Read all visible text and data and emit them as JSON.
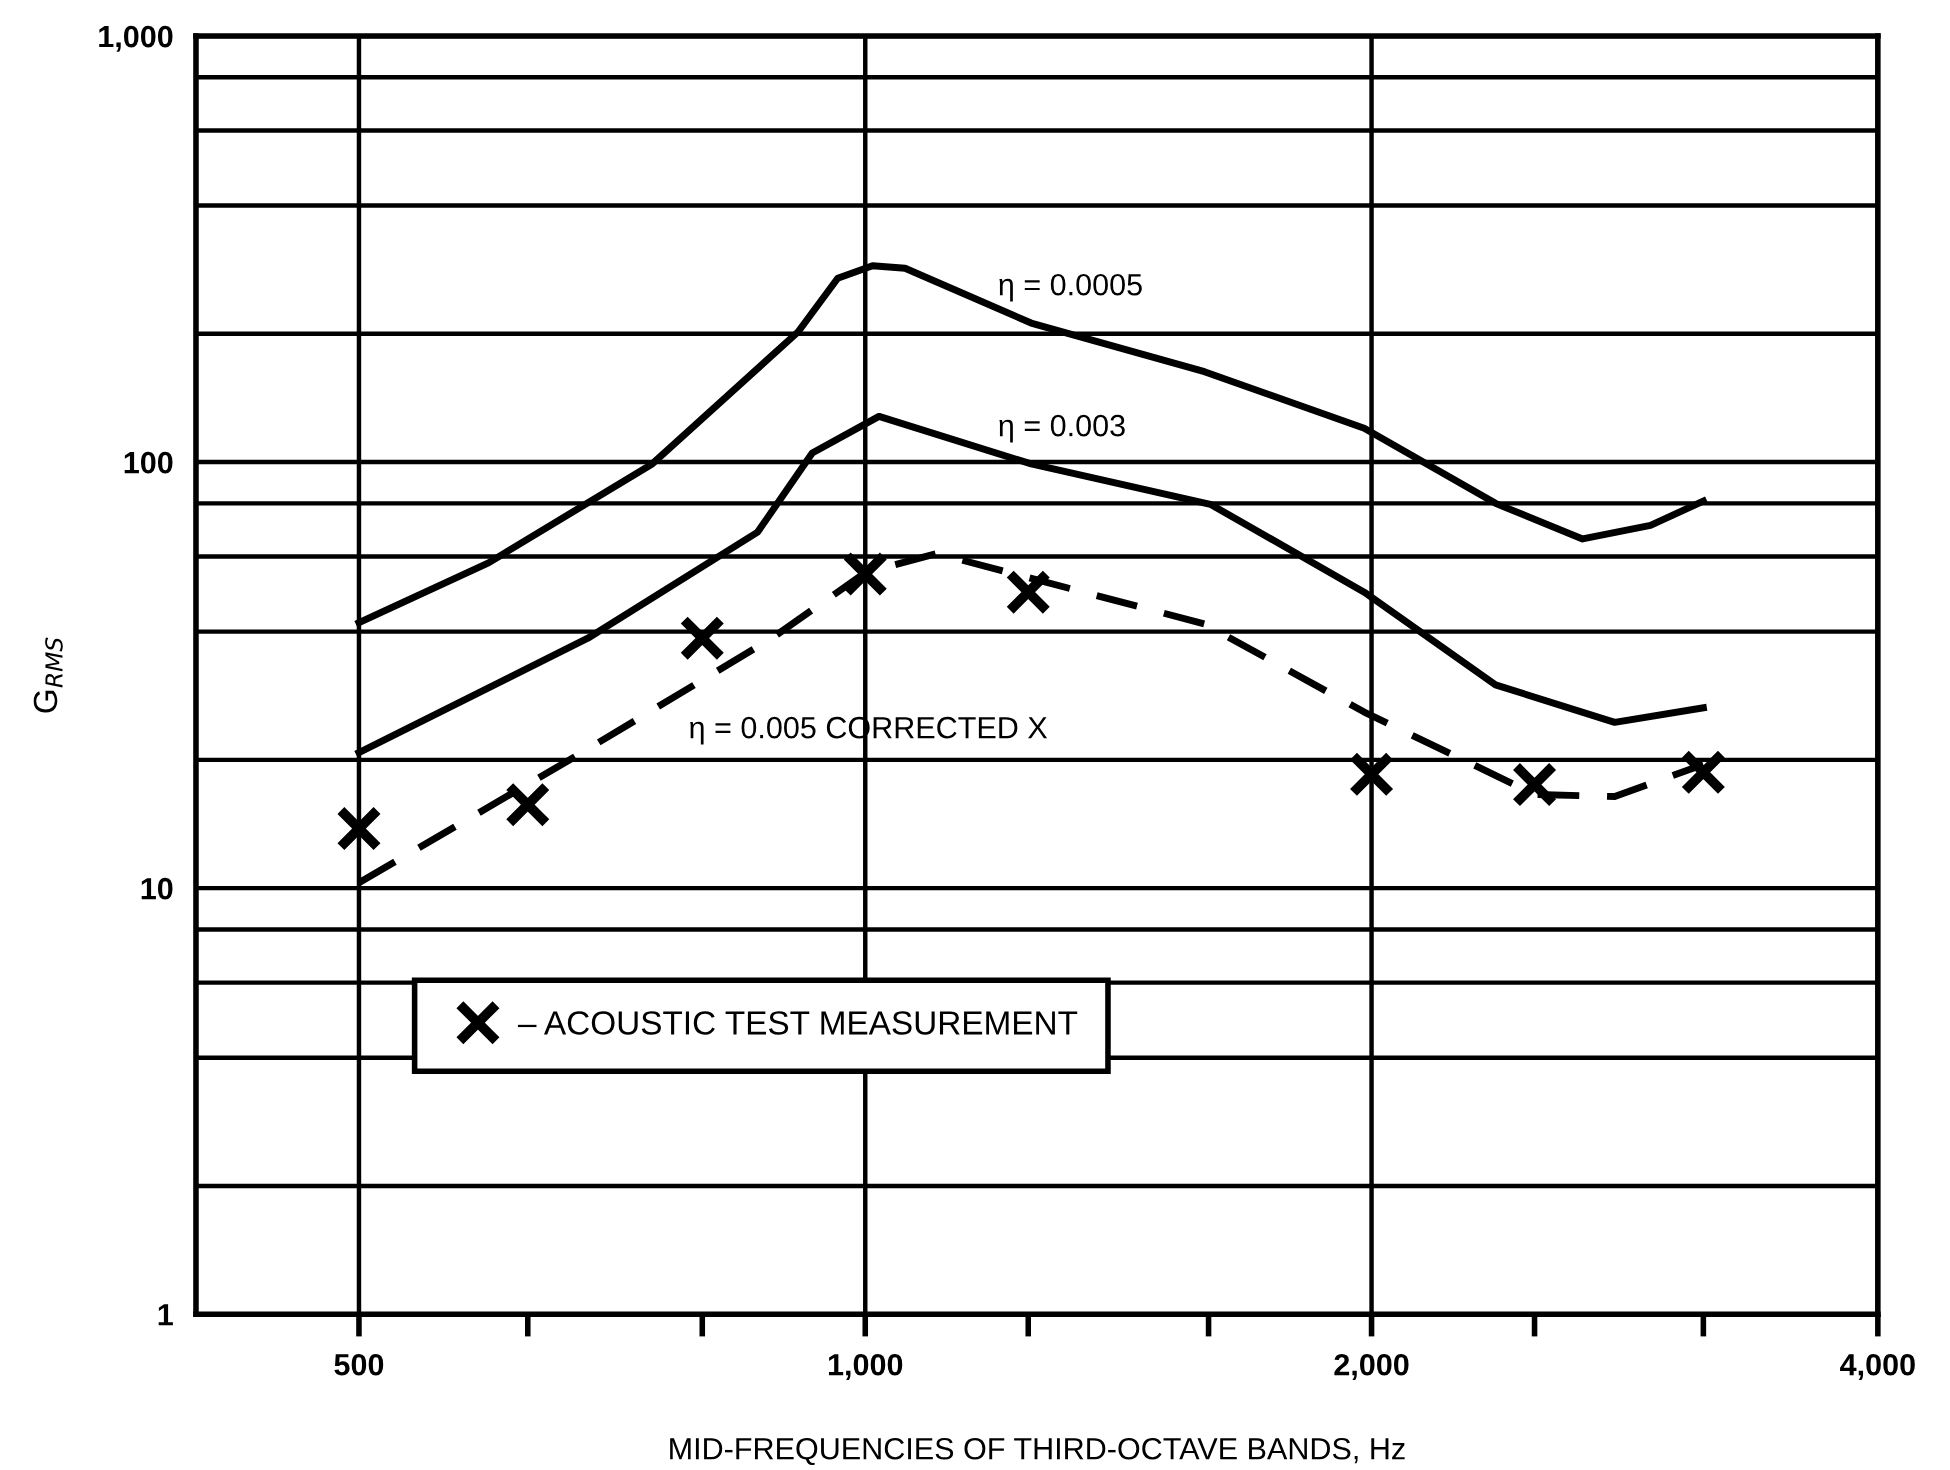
{
  "chart_data": {
    "type": "line",
    "xlabel": "MID-FREQUENCIES OF THIRD-OCTAVE BANDS, Hz",
    "ylabel": "G$_{RMS}$",
    "log": "xy",
    "xlim": [
      400,
      4000
    ],
    "ylim": [
      1,
      1000
    ],
    "xticks": [
      500,
      {
        "value": 630,
        "label": null
      },
      {
        "value": 800,
        "label": null
      },
      {
        "value": 1000,
        "label": "1,000"
      },
      {
        "value": 1250,
        "label": null
      },
      {
        "value": 1600,
        "label": null
      },
      {
        "value": 2000,
        "label": "2,000"
      },
      {
        "value": 2500,
        "label": null
      },
      {
        "value": 3150,
        "label": null
      },
      {
        "value": 4000,
        "label": "4,000"
      }
    ],
    "yticks": [
      1,
      {
        "value": 2,
        "label": null
      },
      {
        "value": 4,
        "label": null
      },
      {
        "value": 6,
        "label": null
      },
      {
        "value": 8,
        "label": null
      },
      10,
      {
        "value": 20,
        "label": null
      },
      {
        "value": 40,
        "label": null
      },
      {
        "value": 60,
        "label": null
      },
      {
        "value": 80,
        "label": null
      },
      100,
      {
        "value": 200,
        "label": null
      },
      {
        "value": 400,
        "label": null
      },
      {
        "value": 600,
        "label": null
      },
      {
        "value": 800,
        "label": null
      },
      {
        "value": 1000,
        "label": "1,000"
      }
    ],
    "grid": true,
    "legend": "bottom left",
    "series": [
      {
        "name": "η = 0.0005",
        "color": "#000000",
        "line_style": "solid",
        "marker": "none",
        "x": [
          500,
          597,
          747,
          912,
          963,
          1010,
          1056,
          1255,
          1591,
          1980,
          2370,
          2670,
          2930,
          3150
        ],
        "values": [
          42,
          58,
          99,
          202,
          270,
          289,
          285,
          212,
          163,
          120,
          80,
          66,
          71,
          81
        ]
      },
      {
        "name": "η = 0.003",
        "color": "#000000",
        "line_style": "solid",
        "marker": "none",
        "x": [
          500,
          684,
          863,
          930,
          1019,
          1255,
          1604,
          1980,
          2370,
          2790,
          3150
        ],
        "values": [
          20.8,
          38.6,
          68.5,
          105,
          128,
          99,
          79.6,
          49.5,
          30,
          24.5,
          26.5
        ]
      },
      {
        "name": "η = 0.005 CORRECTED X",
        "color": "#000000",
        "line_style": "dashed",
        "marker": "none",
        "x": [
          500,
          670,
          880,
          1000,
          1103,
          1591,
          1980,
          2500,
          2790,
          3150
        ],
        "values": [
          10.3,
          20.2,
          38.6,
          55,
          61,
          41.7,
          25.9,
          16.6,
          16.4,
          19.5
        ]
      },
      {
        "name": "– ACOUSTIC TEST MEASUREMENT",
        "type": "scatter",
        "color": "#000000",
        "marker": "cross",
        "x": [
          500,
          630,
          800,
          1000,
          1250,
          2000,
          2500,
          3150
        ],
        "values": [
          13.8,
          15.7,
          38.6,
          54.6,
          49.5,
          18.5,
          17.5,
          18.7
        ]
      }
    ]
  }
}
